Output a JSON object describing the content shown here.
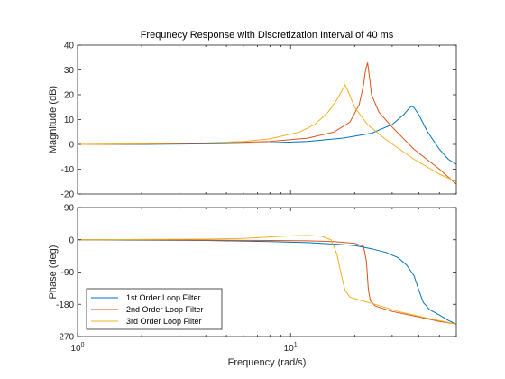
{
  "chart_data": {
    "type": "line",
    "title": "Frequnecy Response with Discretization Interval of 40 ms",
    "xlabel": "Frequency  (rad/s)",
    "xscale": "log",
    "xlim": [
      1,
      60
    ],
    "xticks": [
      {
        "value": 1,
        "label": "10",
        "sup": "0"
      },
      {
        "value": 10,
        "label": "10",
        "sup": "1"
      }
    ],
    "series_colors": [
      "#0072BD",
      "#D95319",
      "#EDB120"
    ],
    "legend": {
      "placement": "bottom-left",
      "entries": [
        "1st Order Loop Filter",
        "2nd Order Loop Filter",
        "3rd Order Loop Filter"
      ]
    },
    "panels": [
      {
        "name": "magnitude",
        "ylabel": "Magnitude (dB)",
        "ylim": [
          -20,
          40
        ],
        "yticks": [
          -20,
          -10,
          0,
          10,
          20,
          30,
          40
        ],
        "series": [
          {
            "x": [
              1,
              2,
              4,
              8,
              12,
              18,
              24,
              30,
              34,
              36,
              37,
              38,
              40,
              44,
              50,
              55,
              60
            ],
            "values": [
              0,
              0,
              0.2,
              0.6,
              1.2,
              2.6,
              4.5,
              8,
              12,
              14.5,
              15.5,
              14.8,
              12,
              5,
              -2,
              -6,
              -8
            ]
          },
          {
            "x": [
              1,
              2,
              4,
              8,
              12,
              16,
              19,
              21,
              22,
              22.5,
              23,
              23.5,
              24,
              26,
              30,
              38,
              50,
              60
            ],
            "values": [
              0,
              0.1,
              0.4,
              1.2,
              2.5,
              5,
              9,
              16,
              24,
              30,
              33,
              27,
              20,
              13,
              7,
              -2,
              -10,
              -16
            ]
          },
          {
            "x": [
              1,
              2,
              4,
              6,
              8,
              11,
              13,
              15,
              16.5,
              17.5,
              18,
              18.5,
              20,
              23,
              28,
              38,
              50,
              60
            ],
            "values": [
              0,
              0.2,
              0.6,
              1.2,
              2.2,
              5,
              8,
              13,
              18,
              22,
              24,
              22,
              15,
              8,
              2,
              -6,
              -12,
              -15
            ]
          }
        ]
      },
      {
        "name": "phase",
        "ylabel": "Phase (deg)",
        "ylim": [
          -270,
          90
        ],
        "yticks": [
          -270,
          -180,
          -90,
          0,
          90
        ],
        "series": [
          {
            "x": [
              1,
              2,
              4,
              8,
              12,
              16,
              20,
              24,
              28,
              32,
              35,
              38,
              40,
              42,
              45,
              50,
              55,
              60
            ],
            "values": [
              0,
              -1,
              -2,
              -5,
              -8,
              -12,
              -16,
              -25,
              -35,
              -50,
              -70,
              -100,
              -140,
              -175,
              -195,
              -210,
              -225,
              -235
            ]
          },
          {
            "x": [
              1,
              2,
              4,
              8,
              12,
              16,
              20,
              22,
              22.7,
              23.2,
              23.7,
              25,
              30,
              40,
              50,
              60
            ],
            "values": [
              0,
              0,
              -1,
              -2,
              -3,
              -5,
              -10,
              -18,
              -60,
              -140,
              -170,
              -185,
              -200,
              -215,
              -228,
              -235
            ]
          },
          {
            "x": [
              1,
              2,
              4,
              6,
              8,
              10,
              12,
              14,
              15.5,
              16.5,
              17.2,
              18,
              19,
              21,
              25,
              32,
              45,
              60
            ],
            "values": [
              0,
              1,
              2,
              4,
              8,
              11,
              12,
              10,
              0,
              -40,
              -90,
              -140,
              -160,
              -168,
              -180,
              -200,
              -220,
              -235
            ]
          }
        ]
      }
    ]
  }
}
